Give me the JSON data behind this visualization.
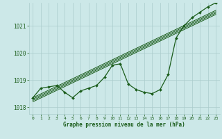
{
  "bg_color": "#cce8e8",
  "grid_color": "#aacccc",
  "line_color": "#1a5c1a",
  "text_color": "#1a5c1a",
  "ylim": [
    1017.75,
    1021.85
  ],
  "xlim": [
    -0.5,
    23.5
  ],
  "yticks": [
    1018,
    1019,
    1020,
    1021
  ],
  "xticks": [
    0,
    1,
    2,
    3,
    4,
    5,
    6,
    7,
    8,
    9,
    10,
    11,
    12,
    13,
    14,
    15,
    16,
    17,
    18,
    19,
    20,
    21,
    22,
    23
  ],
  "xlabel": "Graphe pression niveau de la mer (hPa)",
  "main_series": [
    1018.35,
    1018.7,
    1018.75,
    1018.8,
    1018.55,
    1018.35,
    1018.6,
    1018.7,
    1018.8,
    1019.1,
    1019.55,
    1019.6,
    1018.85,
    1018.65,
    1018.55,
    1018.5,
    1018.65,
    1019.2,
    1020.55,
    1021.0,
    1021.3,
    1021.5,
    1021.7,
    1021.85
  ],
  "linear1": [
    1018.35,
    1018.49,
    1018.63,
    1018.77,
    1018.91,
    1019.05,
    1019.19,
    1019.33,
    1019.47,
    1019.61,
    1019.75,
    1019.89,
    1020.03,
    1020.17,
    1020.31,
    1020.45,
    1020.59,
    1020.73,
    1020.87,
    1021.01,
    1021.15,
    1021.29,
    1021.43,
    1021.57
  ],
  "linear2": [
    1018.3,
    1018.44,
    1018.58,
    1018.72,
    1018.86,
    1019.0,
    1019.14,
    1019.28,
    1019.42,
    1019.56,
    1019.7,
    1019.84,
    1019.98,
    1020.12,
    1020.26,
    1020.4,
    1020.54,
    1020.68,
    1020.82,
    1020.96,
    1021.1,
    1021.24,
    1021.38,
    1021.52
  ],
  "linear3": [
    1018.25,
    1018.39,
    1018.53,
    1018.67,
    1018.81,
    1018.95,
    1019.09,
    1019.23,
    1019.37,
    1019.51,
    1019.65,
    1019.79,
    1019.93,
    1020.07,
    1020.21,
    1020.35,
    1020.49,
    1020.63,
    1020.77,
    1020.91,
    1021.05,
    1021.19,
    1021.33,
    1021.47
  ],
  "linear4": [
    1018.2,
    1018.34,
    1018.48,
    1018.62,
    1018.76,
    1018.9,
    1019.04,
    1019.18,
    1019.32,
    1019.46,
    1019.6,
    1019.74,
    1019.88,
    1020.02,
    1020.16,
    1020.3,
    1020.44,
    1020.58,
    1020.72,
    1020.86,
    1021.0,
    1021.14,
    1021.28,
    1021.42
  ]
}
